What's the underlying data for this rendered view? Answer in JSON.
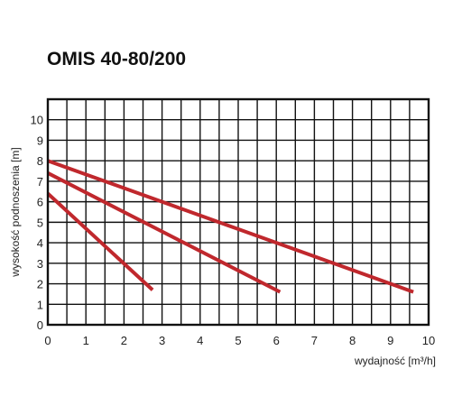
{
  "chart_data": {
    "type": "line",
    "title": "OMIS 40-80/200",
    "xlabel": "wydajność [m³/h]",
    "ylabel": "wysokość podnoszenia [m]",
    "xlim": [
      0,
      10
    ],
    "ylim": [
      0,
      11
    ],
    "x_ticks": [
      "0",
      "1",
      "2",
      "3",
      "4",
      "5",
      "6",
      "7",
      "8",
      "9",
      "10"
    ],
    "y_ticks": [
      "0",
      "1",
      "2",
      "3",
      "4",
      "5",
      "6",
      "7",
      "8",
      "9",
      "10"
    ],
    "grid": true,
    "legend": "none",
    "series": [
      {
        "points": [
          [
            0,
            6.4
          ],
          [
            2.75,
            1.7
          ]
        ]
      },
      {
        "points": [
          [
            0,
            7.4
          ],
          [
            6.1,
            1.6
          ]
        ]
      },
      {
        "points": [
          [
            0,
            8.0
          ],
          [
            9.6,
            1.6
          ]
        ]
      }
    ],
    "colors": {
      "line": "#c0282d",
      "grid": "#111111",
      "frame": "#111111"
    }
  }
}
